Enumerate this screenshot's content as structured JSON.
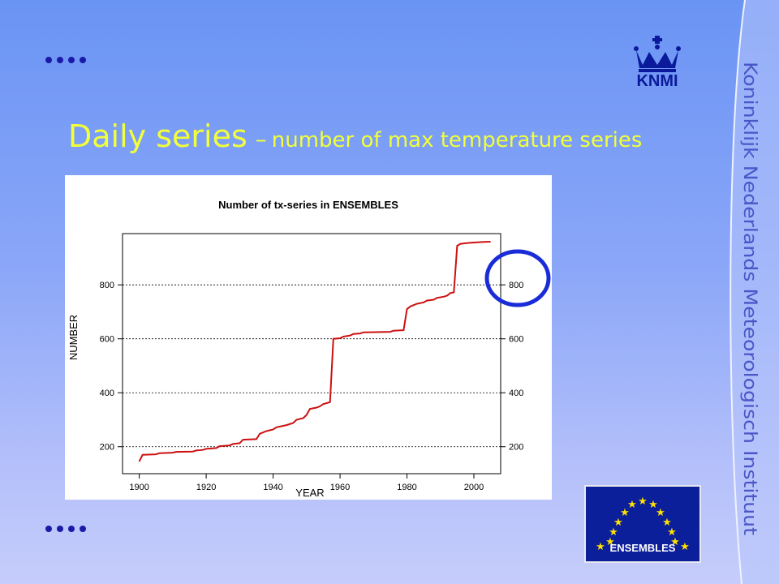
{
  "slide": {
    "title_main": "Daily series",
    "title_dash": "–",
    "title_sub": "number of max temperature series",
    "side_text": "Koninklijk Nederlands Meteorologisch Instituut",
    "logo_knmi": "KNMI",
    "logo_ensembles": "ENSEMBLES",
    "accent_color": "#f2ff3a",
    "bullet_color": "#1a1aa8",
    "highlight_circle_color": "#1a2bd8"
  },
  "chart_data": {
    "type": "line",
    "title": "Number of tx-series in ENSEMBLES",
    "xlabel": "YEAR",
    "ylabel": "NUMBER",
    "xlim": [
      1895,
      2008
    ],
    "ylim": [
      100,
      990
    ],
    "x_ticks": [
      1900,
      1920,
      1940,
      1960,
      1980,
      2000
    ],
    "y_ticks": [
      200,
      400,
      600,
      800
    ],
    "right_axis_ticks": [
      200,
      400,
      600,
      800
    ],
    "grid": "dotted horizontal at y ticks",
    "line_color": "#cc1111",
    "series": [
      {
        "points": [
          [
            1900,
            145
          ],
          [
            1901,
            170
          ],
          [
            1905,
            172
          ],
          [
            1906,
            176
          ],
          [
            1910,
            178
          ],
          [
            1911,
            181
          ],
          [
            1916,
            182
          ],
          [
            1917,
            186
          ],
          [
            1919,
            188
          ],
          [
            1920,
            192
          ],
          [
            1923,
            195
          ],
          [
            1924,
            202
          ],
          [
            1927,
            205
          ],
          [
            1928,
            210
          ],
          [
            1930,
            213
          ],
          [
            1931,
            226
          ],
          [
            1935,
            228
          ],
          [
            1936,
            248
          ],
          [
            1938,
            258
          ],
          [
            1940,
            264
          ],
          [
            1941,
            272
          ],
          [
            1944,
            280
          ],
          [
            1946,
            288
          ],
          [
            1947,
            300
          ],
          [
            1949,
            306
          ],
          [
            1950,
            318
          ],
          [
            1951,
            340
          ],
          [
            1953,
            345
          ],
          [
            1954,
            350
          ],
          [
            1955,
            358
          ],
          [
            1957,
            365
          ],
          [
            1958,
            600
          ],
          [
            1960,
            602
          ],
          [
            1961,
            608
          ],
          [
            1963,
            612
          ],
          [
            1964,
            618
          ],
          [
            1966,
            620
          ],
          [
            1967,
            624
          ],
          [
            1975,
            626
          ],
          [
            1976,
            630
          ],
          [
            1979,
            632
          ],
          [
            1980,
            710
          ],
          [
            1981,
            720
          ],
          [
            1983,
            730
          ],
          [
            1985,
            735
          ],
          [
            1986,
            742
          ],
          [
            1988,
            745
          ],
          [
            1989,
            752
          ],
          [
            1991,
            756
          ],
          [
            1992,
            760
          ],
          [
            1993,
            770
          ],
          [
            1994,
            772
          ],
          [
            1995,
            945
          ],
          [
            1996,
            952
          ],
          [
            1998,
            955
          ],
          [
            2000,
            957
          ],
          [
            2003,
            959
          ],
          [
            2005,
            960
          ]
        ]
      }
    ]
  }
}
